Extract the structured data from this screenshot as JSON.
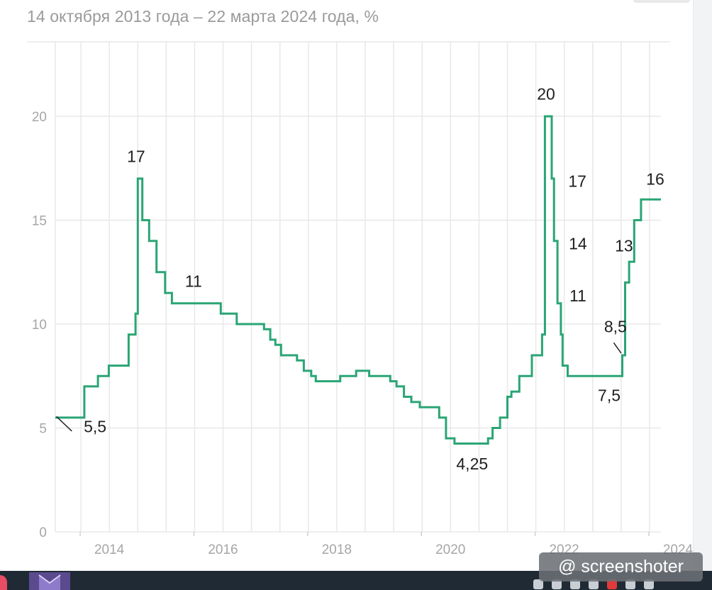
{
  "chart_data": {
    "type": "line",
    "subtitle": "14 октября 2013 года – 22 марта 2024 года, %",
    "ylim": [
      0,
      20
    ],
    "yticks": [
      0,
      5,
      10,
      15,
      20
    ],
    "ytick_labels": [
      "0",
      "5",
      "10",
      "15",
      "20"
    ],
    "xlim": [
      2013.55,
      2024.2
    ],
    "xticks": [
      2014,
      2016,
      2018,
      2020,
      2022,
      2024
    ],
    "xtick_labels": [
      "2014",
      "2016",
      "2018",
      "2020",
      "2022",
      "2024"
    ],
    "grid": true,
    "line_color": "#2aa575",
    "series": [
      {
        "step": true,
        "x": [
          2013.55,
          2013.92,
          2014.06,
          2014.3,
          2014.49,
          2014.84,
          2014.96,
          2015.0,
          2015.08,
          2015.2,
          2015.33,
          2015.48,
          2015.6,
          2016.46,
          2016.74,
          2017.22,
          2017.33,
          2017.42,
          2017.52,
          2017.8,
          2017.92,
          2018.05,
          2018.13,
          2018.25,
          2018.56,
          2018.84,
          2019.07,
          2019.44,
          2019.55,
          2019.68,
          2019.81,
          2019.96,
          2020.3,
          2020.42,
          2020.57,
          2021.16,
          2021.24,
          2021.37,
          2021.5,
          2021.57,
          2021.71,
          2021.93,
          2022.11,
          2022.16,
          2022.28,
          2022.32,
          2022.38,
          2022.44,
          2022.47,
          2022.56,
          2022.69,
          2023.52,
          2023.57,
          2023.64,
          2023.73,
          2023.85,
          2023.96,
          2024.2
        ],
        "y": [
          5.5,
          5.5,
          7.0,
          7.5,
          8.0,
          9.5,
          10.5,
          17.0,
          15.0,
          14.0,
          12.5,
          11.5,
          11.0,
          10.5,
          10.0,
          9.75,
          9.25,
          9.0,
          8.5,
          8.25,
          7.75,
          7.5,
          7.25,
          7.25,
          7.5,
          7.75,
          7.5,
          7.25,
          7.0,
          6.5,
          6.25,
          6.0,
          5.5,
          4.5,
          4.25,
          4.5,
          5.0,
          5.5,
          6.5,
          6.75,
          7.5,
          8.5,
          9.5,
          20.0,
          17.0,
          14.0,
          11.0,
          9.5,
          8.0,
          7.5,
          7.5,
          8.5,
          12.0,
          13.0,
          15.0,
          16.0,
          16.0,
          16.0
        ]
      }
    ],
    "annotations": [
      {
        "text": "5,5",
        "x": 2014.25,
        "y": 4.8
      },
      {
        "text": "17",
        "x": 2014.97,
        "y": 17.8
      },
      {
        "text": "11",
        "x": 2015.98,
        "y": 11.8
      },
      {
        "text": "4,25",
        "x": 2020.88,
        "y": 3.0
      },
      {
        "text": "20",
        "x": 2022.18,
        "y": 20.8
      },
      {
        "text": "17",
        "x": 2022.73,
        "y": 16.6
      },
      {
        "text": "14",
        "x": 2022.74,
        "y": 13.6
      },
      {
        "text": "11",
        "x": 2022.74,
        "y": 11.1
      },
      {
        "text": "7,5",
        "x": 2023.29,
        "y": 6.3
      },
      {
        "text": "8,5",
        "x": 2023.4,
        "y": 9.6
      },
      {
        "text": "13",
        "x": 2023.55,
        "y": 13.5
      },
      {
        "text": "16",
        "x": 2024.1,
        "y": 16.7
      }
    ]
  },
  "watermark": {
    "text": "@ screenshoter"
  }
}
